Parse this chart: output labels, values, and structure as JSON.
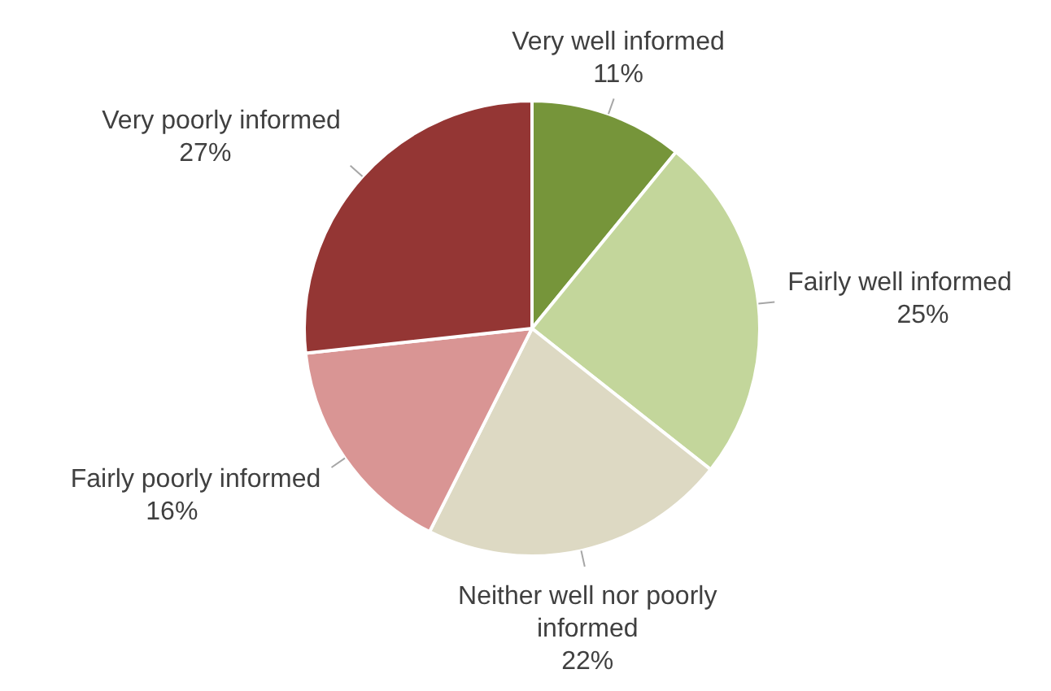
{
  "chart_data": {
    "type": "pie",
    "categories": [
      "Very well informed",
      "Fairly well informed",
      "Neither well nor poorly informed",
      "Fairly poorly informed",
      "Very poorly informed"
    ],
    "values": [
      11,
      25,
      22,
      16,
      27
    ],
    "value_labels": [
      "11%",
      "25%",
      "22%",
      "16%",
      "27%"
    ],
    "colors": [
      "#76953a",
      "#c3d69b",
      "#ddd9c3",
      "#d99594",
      "#943634"
    ]
  }
}
